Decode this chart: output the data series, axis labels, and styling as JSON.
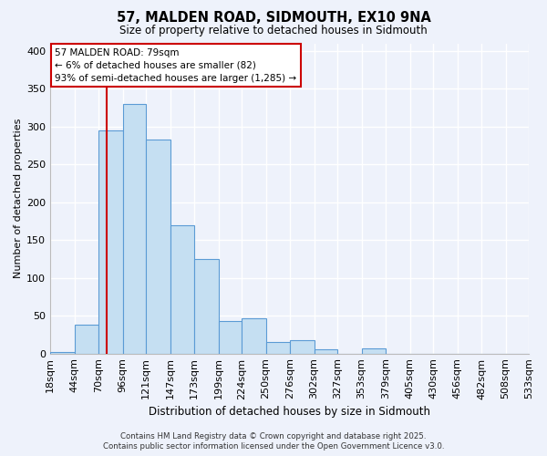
{
  "title": "57, MALDEN ROAD, SIDMOUTH, EX10 9NA",
  "subtitle": "Size of property relative to detached houses in Sidmouth",
  "xlabel": "Distribution of detached houses by size in Sidmouth",
  "ylabel": "Number of detached properties",
  "bar_values": [
    2,
    38,
    295,
    330,
    283,
    170,
    125,
    43,
    46,
    15,
    17,
    5,
    0,
    7,
    0,
    0,
    0,
    0,
    0,
    0
  ],
  "bin_edges": [
    18,
    44,
    70,
    96,
    121,
    147,
    173,
    199,
    224,
    250,
    276,
    302,
    327,
    353,
    379,
    405,
    430,
    456,
    482,
    508,
    533
  ],
  "bar_color": "#c5dff2",
  "bar_edge_color": "#5b9bd5",
  "background_color": "#eef2fb",
  "grid_color": "#ffffff",
  "vline_x": 79,
  "vline_color": "#cc0000",
  "annotation_line1": "57 MALDEN ROAD: 79sqm",
  "annotation_line2": "← 6% of detached houses are smaller (82)",
  "annotation_line3": "93% of semi-detached houses are larger (1,285) →",
  "annotation_box_color": "#ffffff",
  "annotation_box_edge_color": "#cc0000",
  "footer_line1": "Contains HM Land Registry data © Crown copyright and database right 2025.",
  "footer_line2": "Contains public sector information licensed under the Open Government Licence v3.0.",
  "ylim": [
    0,
    410
  ],
  "yticks": [
    0,
    50,
    100,
    150,
    200,
    250,
    300,
    350,
    400
  ],
  "tick_labels": [
    "18sqm",
    "44sqm",
    "70sqm",
    "96sqm",
    "121sqm",
    "147sqm",
    "173sqm",
    "199sqm",
    "224sqm",
    "250sqm",
    "276sqm",
    "302sqm",
    "327sqm",
    "353sqm",
    "379sqm",
    "405sqm",
    "430sqm",
    "456sqm",
    "482sqm",
    "508sqm",
    "533sqm"
  ]
}
